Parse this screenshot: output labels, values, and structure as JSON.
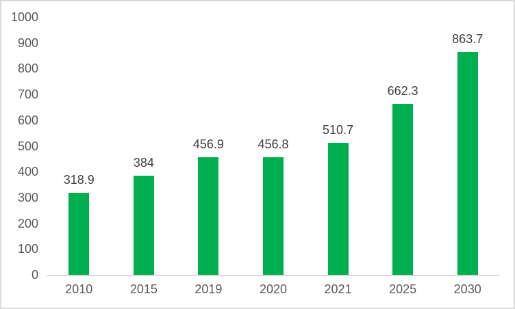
{
  "chart_data": {
    "type": "bar",
    "title": "",
    "xlabel": "",
    "ylabel": "",
    "categories": [
      "2010",
      "2015",
      "2019",
      "2020",
      "2021",
      "2025",
      "2030"
    ],
    "values": [
      318.9,
      384,
      456.9,
      456.8,
      510.7,
      662.3,
      863.7
    ],
    "value_labels": [
      "318.9",
      "384",
      "456.9",
      "456.8",
      "510.7",
      "662.3",
      "863.7"
    ],
    "ylim": [
      0,
      1000
    ],
    "yticks": [
      0,
      100,
      200,
      300,
      400,
      500,
      600,
      700,
      800,
      900,
      1000
    ],
    "grid": false,
    "legend": "none",
    "data_labels": true,
    "colors": {
      "bar": "#00B050",
      "value_label": "#404040",
      "tick_label": "#595959",
      "axis_line": "#d9d9d9",
      "frame_border": "#d9d9d9",
      "background": "#ffffff"
    }
  }
}
